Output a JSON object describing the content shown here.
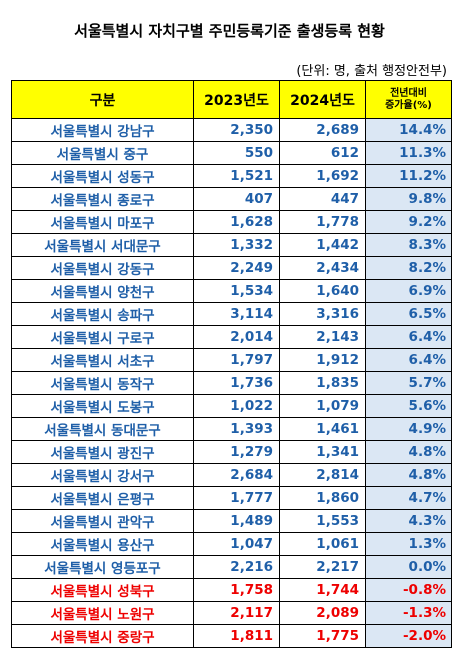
{
  "title": "서울특별시 자치구별 주민등록기준 출생등록 현황",
  "unit_note": "(단위: 명, 출처 행정안전부)",
  "columns": {
    "district": "구분",
    "y2023": "2023년도",
    "y2024": "2024년도",
    "change_line1": "전년대비",
    "change_line2": "증가율(%)"
  },
  "colors": {
    "header_bg": "#ffff00",
    "positive_text": "#1f5fa8",
    "negative_text": "#ee0000",
    "change_bg": "#dbe7f4"
  },
  "rows": [
    {
      "district": "서울특별시 강남구",
      "y2023": "2,350",
      "y2024": "2,689",
      "change": "14.4%",
      "negative": false
    },
    {
      "district": "서울특별시 중구",
      "y2023": "550",
      "y2024": "612",
      "change": "11.3%",
      "negative": false
    },
    {
      "district": "서울특별시 성동구",
      "y2023": "1,521",
      "y2024": "1,692",
      "change": "11.2%",
      "negative": false
    },
    {
      "district": "서울특별시 종로구",
      "y2023": "407",
      "y2024": "447",
      "change": "9.8%",
      "negative": false
    },
    {
      "district": "서울특별시 마포구",
      "y2023": "1,628",
      "y2024": "1,778",
      "change": "9.2%",
      "negative": false
    },
    {
      "district": "서울특별시 서대문구",
      "y2023": "1,332",
      "y2024": "1,442",
      "change": "8.3%",
      "negative": false
    },
    {
      "district": "서울특별시 강동구",
      "y2023": "2,249",
      "y2024": "2,434",
      "change": "8.2%",
      "negative": false
    },
    {
      "district": "서울특별시 양천구",
      "y2023": "1,534",
      "y2024": "1,640",
      "change": "6.9%",
      "negative": false
    },
    {
      "district": "서울특별시 송파구",
      "y2023": "3,114",
      "y2024": "3,316",
      "change": "6.5%",
      "negative": false
    },
    {
      "district": "서울특별시 구로구",
      "y2023": "2,014",
      "y2024": "2,143",
      "change": "6.4%",
      "negative": false
    },
    {
      "district": "서울특별시 서초구",
      "y2023": "1,797",
      "y2024": "1,912",
      "change": "6.4%",
      "negative": false
    },
    {
      "district": "서울특별시 동작구",
      "y2023": "1,736",
      "y2024": "1,835",
      "change": "5.7%",
      "negative": false
    },
    {
      "district": "서울특별시 도봉구",
      "y2023": "1,022",
      "y2024": "1,079",
      "change": "5.6%",
      "negative": false
    },
    {
      "district": "서울특별시 동대문구",
      "y2023": "1,393",
      "y2024": "1,461",
      "change": "4.9%",
      "negative": false
    },
    {
      "district": "서울특별시 광진구",
      "y2023": "1,279",
      "y2024": "1,341",
      "change": "4.8%",
      "negative": false
    },
    {
      "district": "서울특별시 강서구",
      "y2023": "2,684",
      "y2024": "2,814",
      "change": "4.8%",
      "negative": false
    },
    {
      "district": "서울특별시 은평구",
      "y2023": "1,777",
      "y2024": "1,860",
      "change": "4.7%",
      "negative": false
    },
    {
      "district": "서울특별시 관악구",
      "y2023": "1,489",
      "y2024": "1,553",
      "change": "4.3%",
      "negative": false
    },
    {
      "district": "서울특별시 용산구",
      "y2023": "1,047",
      "y2024": "1,061",
      "change": "1.3%",
      "negative": false
    },
    {
      "district": "서울특별시 영등포구",
      "y2023": "2,216",
      "y2024": "2,217",
      "change": "0.0%",
      "negative": false
    },
    {
      "district": "서울특별시 성북구",
      "y2023": "1,758",
      "y2024": "1,744",
      "change": "-0.8%",
      "negative": true
    },
    {
      "district": "서울특별시 노원구",
      "y2023": "2,117",
      "y2024": "2,089",
      "change": "-1.3%",
      "negative": true
    },
    {
      "district": "서울특별시 중랑구",
      "y2023": "1,811",
      "y2024": "1,775",
      "change": "-2.0%",
      "negative": true
    }
  ]
}
